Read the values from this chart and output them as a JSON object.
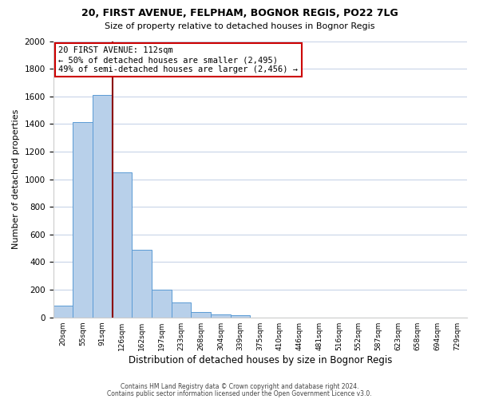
{
  "title1": "20, FIRST AVENUE, FELPHAM, BOGNOR REGIS, PO22 7LG",
  "title2": "Size of property relative to detached houses in Bognor Regis",
  "xlabel": "Distribution of detached houses by size in Bognor Regis",
  "ylabel": "Number of detached properties",
  "bar_labels": [
    "20sqm",
    "55sqm",
    "91sqm",
    "126sqm",
    "162sqm",
    "197sqm",
    "233sqm",
    "268sqm",
    "304sqm",
    "339sqm",
    "375sqm",
    "410sqm",
    "446sqm",
    "481sqm",
    "516sqm",
    "552sqm",
    "587sqm",
    "623sqm",
    "658sqm",
    "694sqm",
    "729sqm"
  ],
  "bar_values": [
    85,
    1415,
    1610,
    1050,
    490,
    200,
    110,
    40,
    22,
    15,
    0,
    0,
    0,
    0,
    0,
    0,
    0,
    0,
    0,
    0,
    0
  ],
  "bar_color": "#b8d0ea",
  "bar_edgecolor": "#5b9bd5",
  "property_line_color": "#8b0000",
  "property_line_x": 2.5,
  "annotation_title": "20 FIRST AVENUE: 112sqm",
  "annotation_line1": "← 50% of detached houses are smaller (2,495)",
  "annotation_line2": "49% of semi-detached houses are larger (2,456) →",
  "annotation_box_color": "#ffffff",
  "annotation_box_edgecolor": "#cc0000",
  "ylim": [
    0,
    2000
  ],
  "yticks": [
    0,
    200,
    400,
    600,
    800,
    1000,
    1200,
    1400,
    1600,
    1800,
    2000
  ],
  "footnote1": "Contains HM Land Registry data © Crown copyright and database right 2024.",
  "footnote2": "Contains public sector information licensed under the Open Government Licence v3.0.",
  "background_color": "#ffffff",
  "grid_color": "#c8d4e8"
}
